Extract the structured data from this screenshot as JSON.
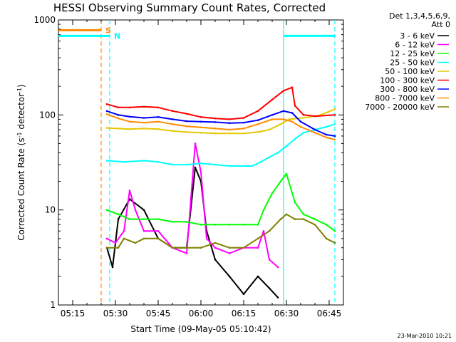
{
  "chart_data": {
    "type": "line",
    "title": "HESSI Observing Summary Count Rates, Corrected",
    "xlabel": "Start Time (09-May-05 05:10:42)",
    "ylabel": "Corrected Count Rate (s",
    "ylabel_sup1": "-1",
    "ylabel_mid": " detector",
    "ylabel_sup2": "-1",
    "ylabel_end": ")",
    "y_scale": "log",
    "ylim": [
      1,
      1000
    ],
    "xlim": [
      "05:10",
      "06:50"
    ],
    "x_ticks": [
      "05:15",
      "05:30",
      "05:45",
      "06:00",
      "06:15",
      "06:30",
      "06:45"
    ],
    "y_ticks": [
      "1",
      "10",
      "100",
      "1000"
    ],
    "legend_header_1": "Det 1,3,4,5,6,9,",
    "legend_header_2": "Att 0",
    "series": [
      {
        "name": "3 - 6 keV",
        "color": "#000000",
        "points": [
          [
            "05:27",
            4
          ],
          [
            "05:29",
            2.5
          ],
          [
            "05:31",
            8
          ],
          [
            "05:35",
            13
          ],
          [
            "05:40",
            10
          ],
          [
            "05:45",
            5
          ],
          [
            "05:50",
            4
          ],
          [
            "05:55",
            4
          ],
          [
            "05:58",
            28
          ],
          [
            "06:00",
            20
          ],
          [
            "06:02",
            6
          ],
          [
            "06:05",
            3
          ],
          [
            "06:10",
            2
          ],
          [
            "06:15",
            1.3
          ],
          [
            "06:20",
            2
          ],
          [
            "06:24",
            1.5
          ],
          [
            "06:27",
            1.2
          ]
        ]
      },
      {
        "name": "6 - 12 keV",
        "color": "#ff00ff",
        "points": [
          [
            "05:27",
            5
          ],
          [
            "05:30",
            4.5
          ],
          [
            "05:33",
            6
          ],
          [
            "05:35",
            16
          ],
          [
            "05:37",
            10
          ],
          [
            "05:40",
            6
          ],
          [
            "05:45",
            6
          ],
          [
            "05:50",
            4
          ],
          [
            "05:55",
            3.5
          ],
          [
            "05:58",
            50
          ],
          [
            "06:00",
            25
          ],
          [
            "06:02",
            5
          ],
          [
            "06:05",
            4
          ],
          [
            "06:10",
            3.5
          ],
          [
            "06:15",
            4
          ],
          [
            "06:20",
            4
          ],
          [
            "06:22",
            6
          ],
          [
            "06:24",
            3
          ],
          [
            "06:27",
            2.5
          ]
        ]
      },
      {
        "name": "12 - 25 keV",
        "color": "#00ff00",
        "points": [
          [
            "05:27",
            10
          ],
          [
            "05:31",
            9
          ],
          [
            "05:35",
            8
          ],
          [
            "05:40",
            8
          ],
          [
            "05:45",
            8
          ],
          [
            "05:50",
            7.5
          ],
          [
            "05:55",
            7.5
          ],
          [
            "06:00",
            7
          ],
          [
            "06:05",
            7
          ],
          [
            "06:10",
            7
          ],
          [
            "06:15",
            7
          ],
          [
            "06:20",
            7
          ],
          [
            "06:22",
            10
          ],
          [
            "06:25",
            15
          ],
          [
            "06:28",
            20
          ],
          [
            "06:30",
            24
          ],
          [
            "06:33",
            12
          ],
          [
            "06:36",
            9
          ],
          [
            "06:40",
            8
          ],
          [
            "06:44",
            7
          ],
          [
            "06:47",
            6
          ]
        ]
      },
      {
        "name": "25 - 50 keV",
        "color": "#00ffff",
        "points": [
          [
            "05:27",
            33
          ],
          [
            "05:33",
            32
          ],
          [
            "05:40",
            33
          ],
          [
            "05:45",
            32
          ],
          [
            "05:50",
            30
          ],
          [
            "05:55",
            30
          ],
          [
            "06:00",
            31
          ],
          [
            "06:05",
            30
          ],
          [
            "06:10",
            29
          ],
          [
            "06:15",
            29
          ],
          [
            "06:18",
            29
          ],
          [
            "06:21",
            32
          ],
          [
            "06:24",
            36
          ],
          [
            "06:27",
            40
          ],
          [
            "06:30",
            47
          ],
          [
            "06:33",
            56
          ],
          [
            "06:36",
            65
          ],
          [
            "06:40",
            70
          ],
          [
            "06:44",
            75
          ],
          [
            "06:47",
            80
          ]
        ]
      },
      {
        "name": "50 - 100 keV",
        "color": "#e6c800",
        "points": [
          [
            "05:27",
            73
          ],
          [
            "05:31",
            72
          ],
          [
            "05:35",
            71
          ],
          [
            "05:40",
            72
          ],
          [
            "05:45",
            71
          ],
          [
            "05:50",
            68
          ],
          [
            "05:55",
            66
          ],
          [
            "06:00",
            65
          ],
          [
            "06:05",
            64
          ],
          [
            "06:10",
            64
          ],
          [
            "06:15",
            64
          ],
          [
            "06:20",
            66
          ],
          [
            "06:24",
            70
          ],
          [
            "06:28",
            80
          ],
          [
            "06:31",
            90
          ],
          [
            "06:34",
            92
          ],
          [
            "06:38",
            95
          ],
          [
            "06:42",
            100
          ],
          [
            "06:47",
            115
          ]
        ]
      },
      {
        "name": "100 - 300 keV",
        "color": "#ff0000",
        "points": [
          [
            "05:27",
            130
          ],
          [
            "05:31",
            120
          ],
          [
            "05:35",
            120
          ],
          [
            "05:40",
            122
          ],
          [
            "05:45",
            120
          ],
          [
            "05:50",
            110
          ],
          [
            "05:55",
            103
          ],
          [
            "06:00",
            95
          ],
          [
            "06:05",
            92
          ],
          [
            "06:10",
            90
          ],
          [
            "06:15",
            93
          ],
          [
            "06:20",
            110
          ],
          [
            "06:25",
            145
          ],
          [
            "06:29",
            180
          ],
          [
            "06:32",
            195
          ],
          [
            "06:33",
            125
          ],
          [
            "06:36",
            100
          ],
          [
            "06:40",
            97
          ],
          [
            "06:47",
            100
          ]
        ]
      },
      {
        "name": "300 - 800 keV",
        "color": "#0000ff",
        "points": [
          [
            "05:27",
            110
          ],
          [
            "05:31",
            100
          ],
          [
            "05:35",
            96
          ],
          [
            "05:40",
            93
          ],
          [
            "05:45",
            95
          ],
          [
            "05:50",
            90
          ],
          [
            "05:55",
            86
          ],
          [
            "06:00",
            85
          ],
          [
            "06:05",
            84
          ],
          [
            "06:10",
            82
          ],
          [
            "06:15",
            83
          ],
          [
            "06:20",
            88
          ],
          [
            "06:25",
            100
          ],
          [
            "06:29",
            110
          ],
          [
            "06:32",
            105
          ],
          [
            "06:35",
            85
          ],
          [
            "06:40",
            70
          ],
          [
            "06:44",
            62
          ],
          [
            "06:47",
            60
          ]
        ]
      },
      {
        "name": "800 - 7000 keV",
        "color": "#ff8c00",
        "points": [
          [
            "05:27",
            102
          ],
          [
            "05:31",
            92
          ],
          [
            "05:35",
            85
          ],
          [
            "05:40",
            83
          ],
          [
            "05:45",
            85
          ],
          [
            "05:50",
            80
          ],
          [
            "05:55",
            76
          ],
          [
            "06:00",
            74
          ],
          [
            "06:05",
            72
          ],
          [
            "06:10",
            70
          ],
          [
            "06:15",
            72
          ],
          [
            "06:20",
            80
          ],
          [
            "06:25",
            90
          ],
          [
            "06:29",
            90
          ],
          [
            "06:32",
            85
          ],
          [
            "06:35",
            75
          ],
          [
            "06:40",
            65
          ],
          [
            "06:44",
            58
          ],
          [
            "06:47",
            55
          ]
        ]
      },
      {
        "name": "7000 - 20000 keV",
        "color": "#808000",
        "points": [
          [
            "05:27",
            4
          ],
          [
            "05:31",
            4
          ],
          [
            "05:33",
            5
          ],
          [
            "05:37",
            4.5
          ],
          [
            "05:40",
            5
          ],
          [
            "05:45",
            5
          ],
          [
            "05:50",
            4
          ],
          [
            "05:55",
            4
          ],
          [
            "06:00",
            4
          ],
          [
            "06:05",
            4.5
          ],
          [
            "06:10",
            4
          ],
          [
            "06:15",
            4
          ],
          [
            "06:20",
            5
          ],
          [
            "06:24",
            6
          ],
          [
            "06:28",
            8
          ],
          [
            "06:30",
            9
          ],
          [
            "06:33",
            8
          ],
          [
            "06:36",
            8
          ],
          [
            "06:40",
            7
          ],
          [
            "06:44",
            5
          ],
          [
            "06:47",
            4.5
          ]
        ]
      }
    ],
    "attenuator_markers": [
      {
        "label": "S",
        "color": "#ff8c00",
        "level": 780,
        "x_start": "05:10",
        "x_end": "05:25"
      },
      {
        "label": "N",
        "color": "#00ffff",
        "level": 680,
        "x_start": "05:10",
        "x_end": "05:28"
      },
      {
        "label": "",
        "color": "#00ffff",
        "level": 680,
        "x_start": "06:29",
        "x_end": "06:47"
      }
    ],
    "vertical_lines": [
      {
        "x": "05:25",
        "color": "#ff8c00",
        "style": "dashed"
      },
      {
        "x": "05:28",
        "color": "#00ffff",
        "style": "dashed"
      },
      {
        "x": "06:29",
        "color": "#00ffff",
        "style": "solid"
      },
      {
        "x": "06:47",
        "color": "#00ffff",
        "style": "dashed"
      }
    ],
    "footer": "23-Mar-2010 10:21"
  }
}
